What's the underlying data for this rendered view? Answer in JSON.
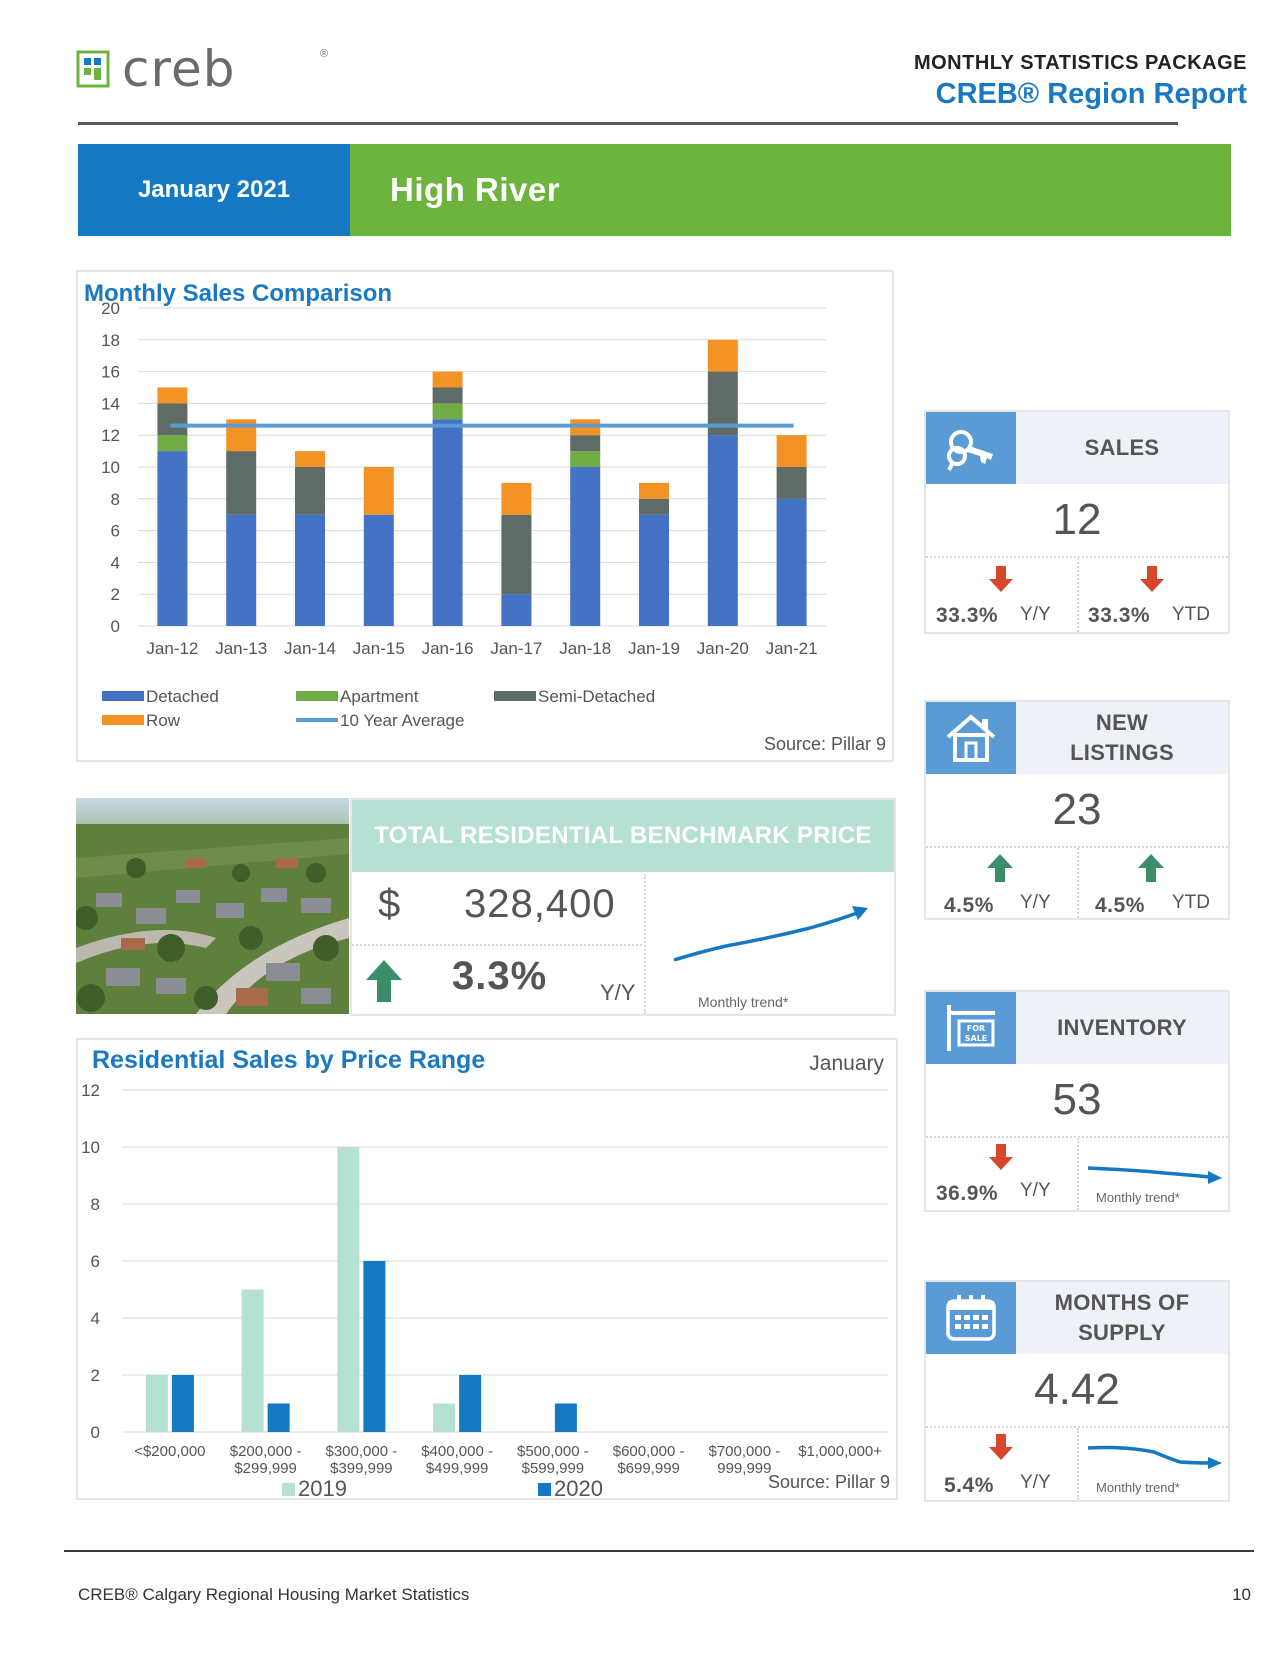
{
  "brand": {
    "name": "creb",
    "registered": "®"
  },
  "report": {
    "kicker": "MONTHLY STATISTICS PACKAGE",
    "title": "CREB® Region Report"
  },
  "banner": {
    "date": "January 2021",
    "place": "High River"
  },
  "colors": {
    "blue": "#1479c2",
    "green": "#6db43f",
    "detached": "#4472c4",
    "apartment": "#70ad47",
    "semi": "#5f6b66",
    "row": "#f39325",
    "avg": "#5b9bd5",
    "y2019": "#b5e0d3",
    "y2020": "#1479c2",
    "up": "#3a8f6a",
    "down": "#d9472b"
  },
  "sales_chart": {
    "title": "Monthly Sales Comparison",
    "source": "Source: Pillar 9",
    "legend": [
      "Detached",
      "Apartment",
      "Semi-Detached",
      "Row",
      "10 Year Average"
    ]
  },
  "price_chart": {
    "title": "Residential Sales by Price Range",
    "month": "January",
    "source": "Source: Pillar 9",
    "legend": [
      "2019",
      "2020"
    ],
    "category_lines": [
      [
        "<$200,000"
      ],
      [
        "$200,000 -",
        "$299,999"
      ],
      [
        "$300,000 -",
        "$399,999"
      ],
      [
        "$400,000 -",
        "$499,999"
      ],
      [
        "$500,000 -",
        "$599,999"
      ],
      [
        "$600,000 -",
        "$699,999"
      ],
      [
        "$700,000 -",
        "999,999"
      ],
      [
        "$1,000,000+"
      ]
    ]
  },
  "chart_data": [
    {
      "type": "bar",
      "stacked": true,
      "title": "Monthly Sales Comparison",
      "categories": [
        "Jan-12",
        "Jan-13",
        "Jan-14",
        "Jan-15",
        "Jan-16",
        "Jan-17",
        "Jan-18",
        "Jan-19",
        "Jan-20",
        "Jan-21"
      ],
      "series": [
        {
          "name": "Detached",
          "values": [
            11,
            7,
            7,
            7,
            13,
            2,
            10,
            7,
            12,
            8
          ]
        },
        {
          "name": "Apartment",
          "values": [
            1,
            0,
            0,
            0,
            1,
            0,
            1,
            0,
            0,
            0
          ]
        },
        {
          "name": "Semi-Detached",
          "values": [
            2,
            4,
            3,
            0,
            1,
            5,
            1,
            1,
            4,
            2
          ]
        },
        {
          "name": "Row",
          "values": [
            1,
            2,
            1,
            3,
            1,
            2,
            1,
            1,
            2,
            2
          ]
        },
        {
          "name": "10 Year Average",
          "type": "line",
          "values": [
            12.6,
            12.6,
            12.6,
            12.6,
            12.6,
            12.6,
            12.6,
            12.6,
            12.6,
            12.6
          ]
        }
      ],
      "ylim": [
        0,
        20
      ],
      "yticks": [
        0,
        2,
        4,
        6,
        8,
        10,
        12,
        14,
        16,
        18,
        20
      ],
      "grid": true,
      "legend_position": "bottom"
    },
    {
      "type": "bar",
      "title": "Residential Sales by Price Range",
      "categories": [
        "<$200,000",
        "$200,000 - $299,999",
        "$300,000 - $399,999",
        "$400,000 - $499,999",
        "$500,000 - $599,999",
        "$600,000 - $699,999",
        "$700,000 - 999,999",
        "$1,000,000+"
      ],
      "series": [
        {
          "name": "2019",
          "values": [
            2,
            5,
            10,
            1,
            0,
            0,
            0,
            0
          ]
        },
        {
          "name": "2020",
          "values": [
            2,
            1,
            6,
            2,
            1,
            0,
            0,
            0
          ]
        }
      ],
      "ylim": [
        0,
        12
      ],
      "yticks": [
        0,
        2,
        4,
        6,
        8,
        10,
        12
      ],
      "grid": true,
      "legend_position": "bottom"
    }
  ],
  "benchmark": {
    "title": "TOTAL RESIDENTIAL BENCHMARK PRICE",
    "currency": "$",
    "value": "328,400",
    "change": "3.3%",
    "change_unit": "Y/Y",
    "direction": "up",
    "trend_label": "Monthly trend*"
  },
  "cards": {
    "sales": {
      "label": "SALES",
      "icon": "keys-icon",
      "value": "12",
      "yy": "33.3%",
      "yy_unit": "Y/Y",
      "ytd": "33.3%",
      "ytd_unit": "YTD",
      "direction": "down"
    },
    "new_listings": {
      "label_1": "NEW",
      "label_2": "LISTINGS",
      "icon": "house-icon",
      "value": "23",
      "yy": "4.5%",
      "yy_unit": "Y/Y",
      "ytd": "4.5%",
      "ytd_unit": "YTD",
      "direction": "up"
    },
    "inventory": {
      "label": "INVENTORY",
      "icon": "for-sale-sign-icon",
      "sign_1": "FOR",
      "sign_2": "SALE",
      "value": "53",
      "yy": "36.9%",
      "yy_unit": "Y/Y",
      "trend_label": "Monthly trend*",
      "direction": "down"
    },
    "months_supply": {
      "label_1": "MONTHS OF",
      "label_2": "SUPPLY",
      "icon": "calendar-icon",
      "value": "4.42",
      "yy": "5.4%",
      "yy_unit": "Y/Y",
      "trend_label": "Monthly trend*",
      "direction": "down"
    }
  },
  "footer": {
    "text": "CREB® Calgary Regional Housing Market Statistics",
    "page": "10"
  }
}
